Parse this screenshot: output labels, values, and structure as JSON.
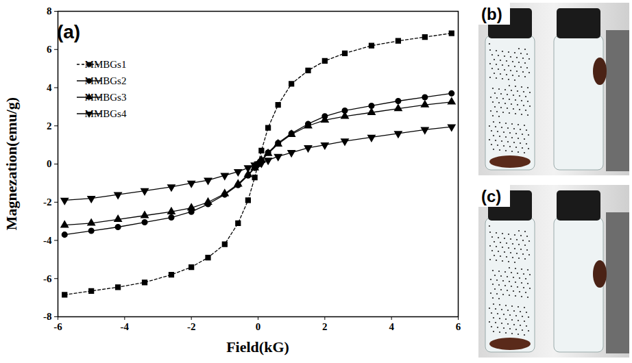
{
  "chart_data": {
    "type": "line",
    "title": "(a)",
    "x_label": "Field(kG)",
    "y_label": "Magnezation(emu/g)",
    "xlim": [
      -6,
      6
    ],
    "ylim": [
      -8,
      8
    ],
    "xticks": [
      -6,
      -4,
      -2,
      0,
      2,
      4,
      6
    ],
    "yticks": [
      -8,
      -6,
      -4,
      -2,
      0,
      2,
      4,
      6,
      8
    ],
    "grid": false,
    "legend": "upper left",
    "x": [
      -5.8,
      -5.0,
      -4.2,
      -3.4,
      -2.6,
      -2.0,
      -1.5,
      -1.0,
      -0.6,
      -0.3,
      -0.1,
      0,
      0.1,
      0.3,
      0.6,
      1.0,
      1.5,
      2.0,
      2.6,
      3.4,
      4.2,
      5.0,
      5.8
    ],
    "series": [
      {
        "name": "MMBGs1",
        "color": "#000000",
        "marker": "square",
        "line_style": "dashed",
        "values": [
          -6.85,
          -6.65,
          -6.45,
          -6.2,
          -5.8,
          -5.4,
          -4.9,
          -4.2,
          -3.1,
          -1.9,
          -0.7,
          0,
          0.7,
          1.9,
          3.1,
          4.2,
          4.9,
          5.4,
          5.8,
          6.2,
          6.45,
          6.65,
          6.85
        ]
      },
      {
        "name": "MMBGs2",
        "color": "#000000",
        "marker": "circle",
        "line_style": "solid",
        "values": [
          -3.7,
          -3.5,
          -3.3,
          -3.05,
          -2.8,
          -2.5,
          -2.1,
          -1.6,
          -1.1,
          -0.6,
          -0.2,
          0,
          0.2,
          0.6,
          1.1,
          1.6,
          2.1,
          2.5,
          2.8,
          3.05,
          3.3,
          3.5,
          3.7
        ]
      },
      {
        "name": "MMBGs3",
        "color": "#000000",
        "marker": "triangle-up",
        "line_style": "solid",
        "values": [
          -3.2,
          -3.1,
          -2.9,
          -2.7,
          -2.5,
          -2.3,
          -2.0,
          -1.55,
          -1.05,
          -0.55,
          -0.2,
          0,
          0.2,
          0.55,
          1.05,
          1.55,
          2.0,
          2.3,
          2.5,
          2.7,
          2.9,
          3.1,
          3.25
        ]
      },
      {
        "name": "MMBGs4",
        "color": "#000000",
        "marker": "triangle-down",
        "line_style": "solid",
        "values": [
          -1.9,
          -1.8,
          -1.6,
          -1.4,
          -1.2,
          -1.0,
          -0.85,
          -0.6,
          -0.4,
          -0.2,
          -0.05,
          0,
          0.05,
          0.2,
          0.4,
          0.6,
          0.85,
          1.0,
          1.2,
          1.4,
          1.6,
          1.8,
          1.95
        ]
      }
    ]
  },
  "photos": [
    {
      "label": "(b)"
    },
    {
      "label": "(c)"
    }
  ]
}
